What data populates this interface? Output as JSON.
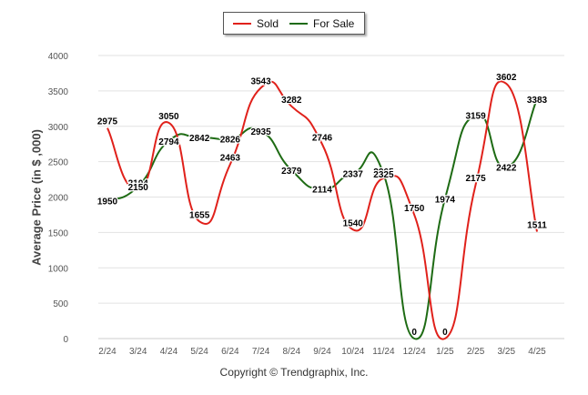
{
  "legend": {
    "sold": "Sold",
    "for_sale": "For Sale"
  },
  "footer": "Copyright © Trendgraphix, Inc.",
  "colors": {
    "sold": "#e0211b",
    "for_sale": "#1e6b14",
    "grid": "#e2e2e2",
    "axis_text": "#555555"
  },
  "chart_data": {
    "type": "line",
    "title": "",
    "xlabel": "",
    "ylabel": "Average Price (in $ ,000)",
    "categories": [
      "2/24",
      "3/24",
      "4/24",
      "5/24",
      "6/24",
      "7/24",
      "8/24",
      "9/24",
      "10/24",
      "11/24",
      "12/24",
      "1/25",
      "2/25",
      "3/25",
      "4/25"
    ],
    "y_ticks": [
      0,
      500,
      1000,
      1500,
      2000,
      2500,
      3000,
      3500,
      4000
    ],
    "ylim": [
      0,
      4000
    ],
    "grid": true,
    "legend_position": "top-center",
    "series": [
      {
        "name": "Sold",
        "color": "#e0211b",
        "values": [
          2975,
          2104,
          3050,
          1655,
          2463,
          3543,
          3282,
          2746,
          1540,
          2265,
          1750,
          0,
          2175,
          3602,
          1511
        ]
      },
      {
        "name": "For Sale",
        "color": "#1e6b14",
        "values": [
          1950,
          2150,
          2794,
          2842,
          2826,
          2935,
          2379,
          2114,
          2337,
          2325,
          0,
          1974,
          3159,
          2422,
          3383
        ]
      }
    ]
  }
}
